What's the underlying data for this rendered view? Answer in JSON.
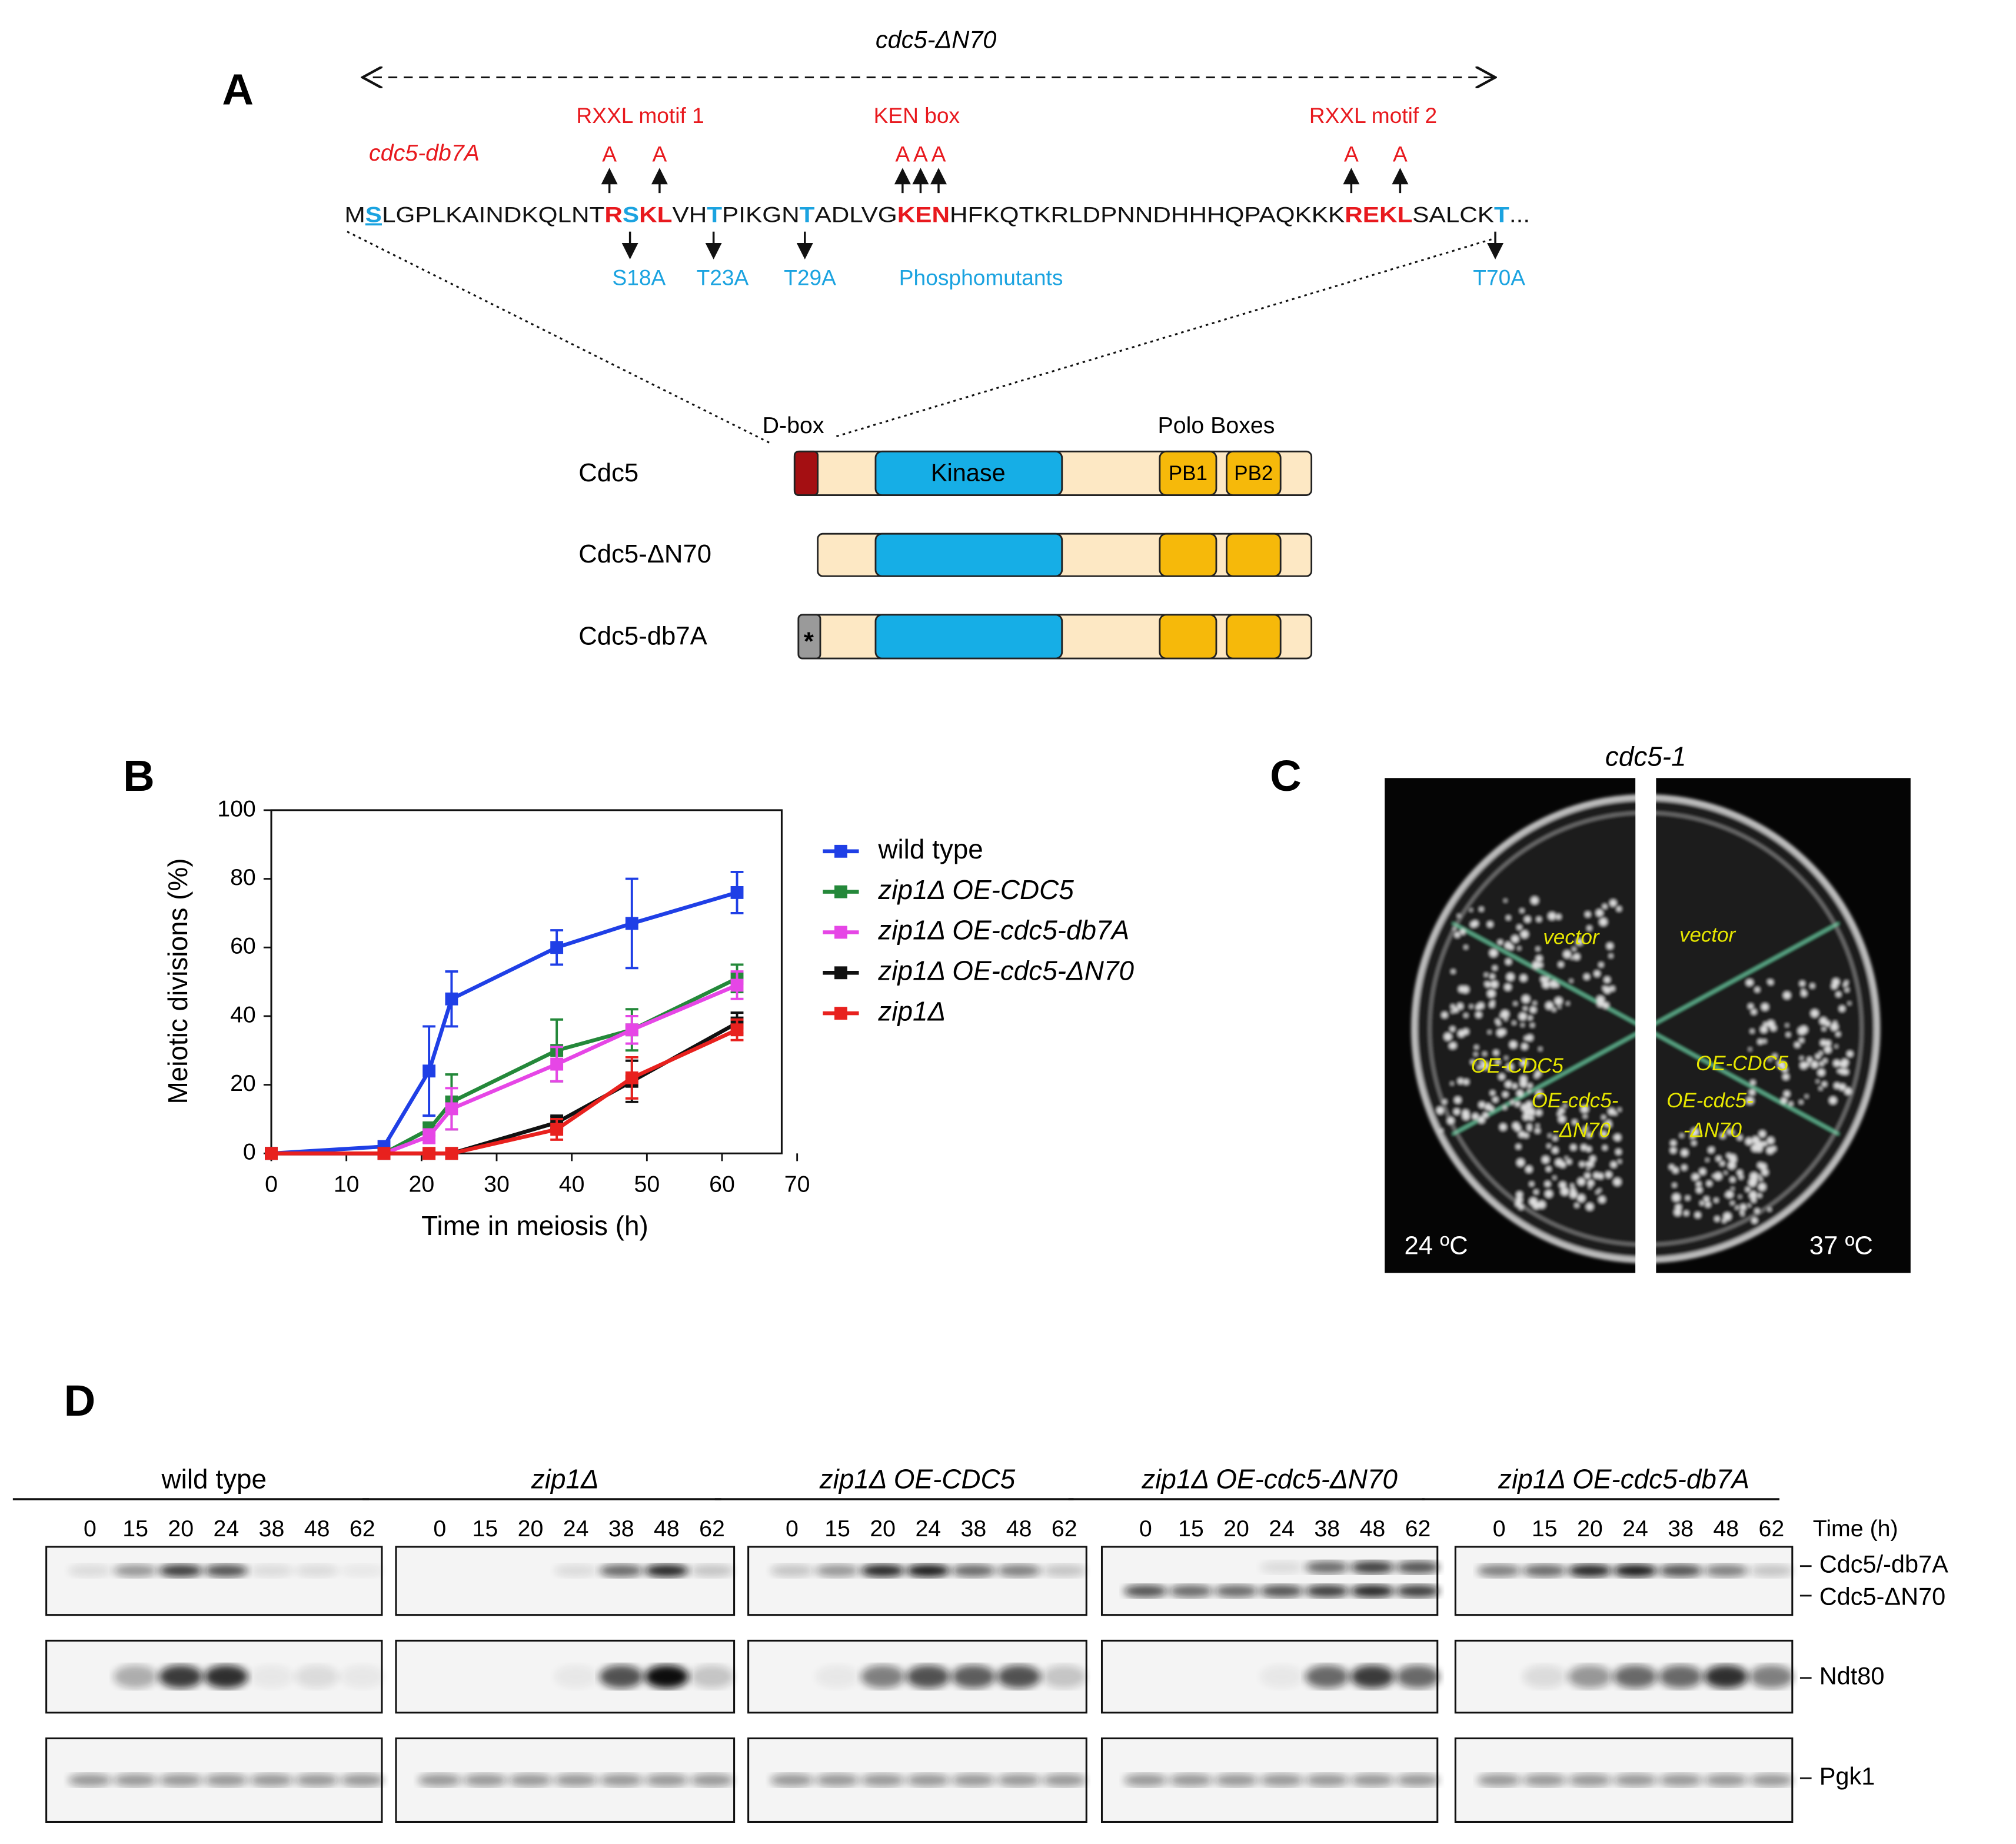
{
  "panel_a": {
    "label": "A",
    "construct": "cdc5-ΔN70",
    "mutant": "cdc5-db7A",
    "motifs": [
      "RXXL motif 1",
      "KEN box",
      "RXXL motif 2"
    ],
    "substitutions": [
      "A",
      "A",
      "A",
      "A",
      "A",
      "A",
      "A"
    ],
    "sequence": [
      {
        "text": "M",
        "color": "#111111",
        "bold": false,
        "underline": false
      },
      {
        "text": "S",
        "color": "#1ba3e0",
        "bold": true,
        "underline": true
      },
      {
        "text": "LGPLKAINDKQLNT",
        "color": "#111111",
        "bold": false,
        "underline": false
      },
      {
        "text": "R",
        "color": "#e8191e",
        "bold": true,
        "underline": false
      },
      {
        "text": "S",
        "color": "#1ba3e0",
        "bold": true,
        "underline": false
      },
      {
        "text": "KL",
        "color": "#e8191e",
        "bold": true,
        "underline": false
      },
      {
        "text": "VH",
        "color": "#111111",
        "bold": false,
        "underline": false
      },
      {
        "text": "T",
        "color": "#1ba3e0",
        "bold": true,
        "underline": false
      },
      {
        "text": "PIKGN",
        "color": "#111111",
        "bold": false,
        "underline": false
      },
      {
        "text": "T",
        "color": "#1ba3e0",
        "bold": true,
        "underline": false
      },
      {
        "text": "ADLVG",
        "color": "#111111",
        "bold": false,
        "underline": false
      },
      {
        "text": "KEN",
        "color": "#e8191e",
        "bold": true,
        "underline": false
      },
      {
        "text": "HFKQTKRLDPNNDHHHQPAQKKK",
        "color": "#111111",
        "bold": false,
        "underline": false
      },
      {
        "text": "REKL",
        "color": "#e8191e",
        "bold": true,
        "underline": false
      },
      {
        "text": "SALCK",
        "color": "#111111",
        "bold": false,
        "underline": false
      },
      {
        "text": "T",
        "color": "#1ba3e0",
        "bold": true,
        "underline": false
      },
      {
        "text": "...",
        "color": "#111111",
        "bold": false,
        "underline": false
      }
    ],
    "phosphosites": [
      "S18A",
      "T23A",
      "T29A",
      "Phosphomutants",
      "T70A"
    ],
    "dbox": "D-box",
    "polo_boxes": "Polo Boxes",
    "kinase": "Kinase",
    "pb1": "PB1",
    "pb2": "PB2",
    "proteins": [
      "Cdc5",
      "Cdc5-ΔN70",
      "Cdc5-db7A"
    ],
    "mark": "*"
  },
  "panel_b": {
    "label": "B"
  },
  "chart_data": {
    "type": "line",
    "xlabel": "Time in meiosis (h)",
    "ylabel": "Meiotic divisions (%)",
    "x": [
      0,
      15,
      21,
      24,
      38,
      48,
      62
    ],
    "series": [
      {
        "name": "wild type",
        "color": "#1f3fe6",
        "values": [
          0,
          2,
          24,
          45,
          60,
          67,
          76
        ],
        "errors": [
          0,
          0,
          13,
          8,
          5,
          13,
          6
        ]
      },
      {
        "name": "zip1Δ  OE-CDC5",
        "color": "#24883a",
        "values": [
          0,
          0,
          7,
          15,
          30,
          36,
          51
        ],
        "errors": [
          0,
          0,
          2,
          8,
          9,
          6,
          4
        ]
      },
      {
        "name": "zip1Δ  OE-cdc5-db7A",
        "color": "#e646e6",
        "values": [
          0,
          0,
          5,
          13,
          26,
          36,
          49
        ],
        "errors": [
          0,
          0,
          2,
          6,
          5,
          4,
          4
        ]
      },
      {
        "name": "zip1Δ  OE-cdc5-ΔN70",
        "color": "#111111",
        "values": [
          0,
          0,
          0,
          0,
          9,
          21,
          38
        ],
        "errors": [
          0,
          0,
          0,
          0,
          2,
          6,
          3
        ]
      },
      {
        "name": "zip1Δ",
        "color": "#e8211e",
        "values": [
          0,
          0,
          0,
          0,
          7,
          22,
          36
        ],
        "errors": [
          0,
          0,
          0,
          0,
          3,
          6,
          3
        ]
      }
    ],
    "xlim": [
      0,
      70
    ],
    "ylim": [
      0,
      100
    ],
    "xticks": [
      0,
      10,
      20,
      30,
      40,
      50,
      60,
      70
    ],
    "yticks": [
      0,
      20,
      40,
      60,
      80,
      100
    ]
  },
  "panel_c": {
    "label": "C",
    "title": "cdc5-1",
    "left": {
      "sectors": [
        "vector",
        "OE-CDC5",
        "OE-cdc5-",
        "-ΔN70"
      ],
      "temperature": "24 ºC"
    },
    "right": {
      "sectors": [
        "vector",
        "OE-CDC5",
        "OE-cdc5-",
        "-ΔN70"
      ],
      "temperature": "37 ºC"
    }
  },
  "panel_d": {
    "label": "D",
    "groups": [
      "wild type",
      "zip1Δ",
      "zip1Δ OE-CDC5",
      "zip1Δ OE-cdc5-ΔN70",
      "zip1Δ  OE-cdc5-db7A"
    ],
    "time_points": [
      "0",
      "15",
      "20",
      "24",
      "38",
      "48",
      "62"
    ],
    "time_label": "Time (h)",
    "blots": [
      "Cdc5/-db7A",
      "Cdc5-ΔN70",
      "Ndt80",
      "Pgk1"
    ]
  }
}
